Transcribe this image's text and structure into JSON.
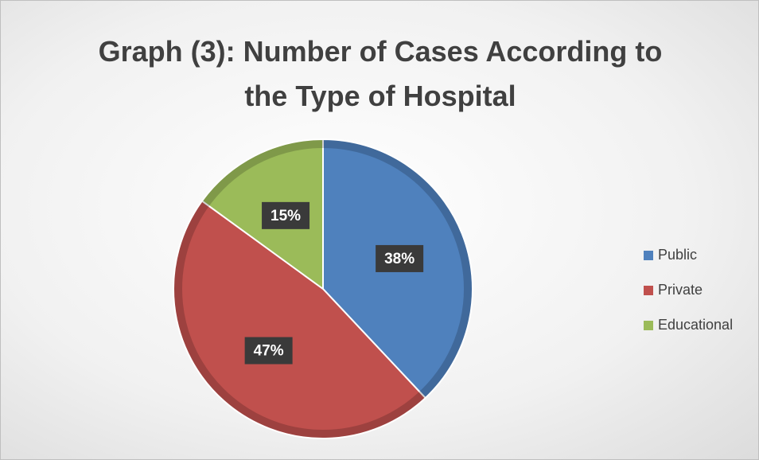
{
  "chart_data": {
    "type": "pie",
    "title": "Graph (3): Number of Cases According to the Type of Hospital",
    "categories": [
      "Public",
      "Private",
      "Educational"
    ],
    "values": [
      38,
      47,
      15
    ],
    "value_labels": [
      "38%",
      "47%",
      "15%"
    ],
    "colors": [
      "#4f81bd",
      "#c0504d",
      "#9bbb59"
    ],
    "legend": "right"
  }
}
